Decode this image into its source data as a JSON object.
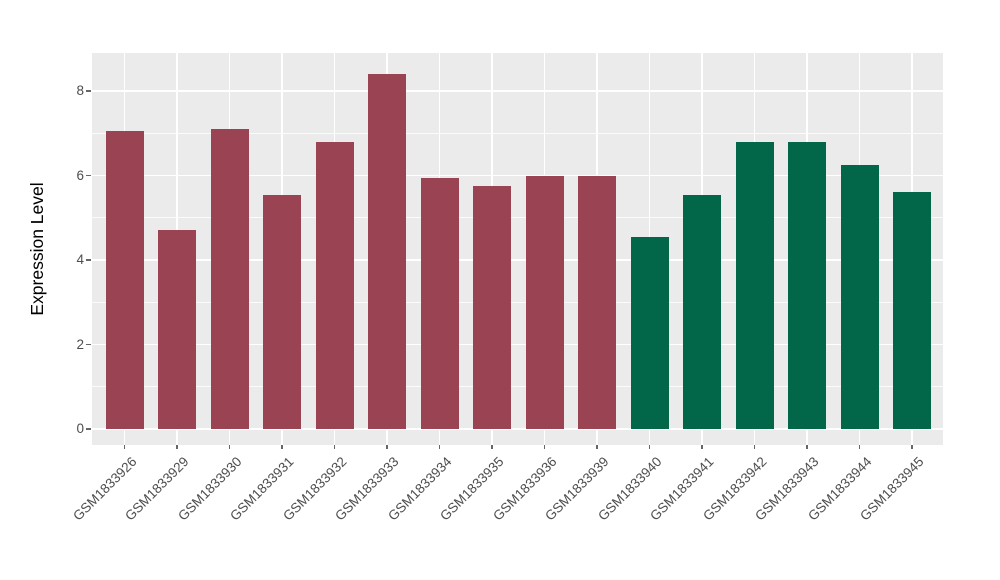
{
  "chart_data": {
    "type": "bar",
    "title": "",
    "xlabel": "",
    "ylabel": "Expression Level",
    "categories": [
      "GSM1833926",
      "GSM1833929",
      "GSM1833930",
      "GSM1833931",
      "GSM1833932",
      "GSM1833933",
      "GSM1833934",
      "GSM1833935",
      "GSM1833936",
      "GSM1833939",
      "GSM1833940",
      "GSM1833941",
      "GSM1833942",
      "GSM1833943",
      "GSM1833944",
      "GSM1833945"
    ],
    "values": [
      7.05,
      4.7,
      7.1,
      5.55,
      6.8,
      8.4,
      5.95,
      5.75,
      6.0,
      6.0,
      4.55,
      5.55,
      6.8,
      6.8,
      6.25,
      5.6
    ],
    "bar_colors": [
      "#9A4453",
      "#9A4453",
      "#9A4453",
      "#9A4453",
      "#9A4453",
      "#9A4453",
      "#9A4453",
      "#9A4453",
      "#9A4453",
      "#9A4453",
      "#026649",
      "#026649",
      "#026649",
      "#026649",
      "#026649",
      "#026649"
    ],
    "group_colors": {
      "group1": "#9A4453",
      "group2": "#026649"
    },
    "yticks": [
      0,
      2,
      4,
      6,
      8
    ],
    "ytick_labels": [
      "0",
      "2",
      "4",
      "6",
      "8"
    ],
    "minor_gridlines": [
      1,
      3,
      5,
      7
    ],
    "ylim": [
      0,
      8.8
    ],
    "grid": true,
    "legend": "none",
    "panel_background": "#EBEBEB",
    "grid_color": "#FFFFFF",
    "axis_text_color": "#4D4D4D"
  }
}
